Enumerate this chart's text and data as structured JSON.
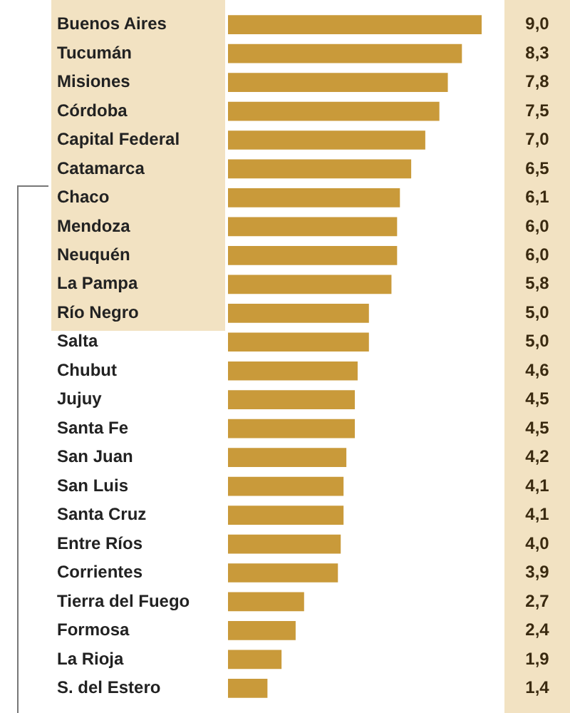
{
  "chart_data": {
    "type": "bar",
    "orientation": "horizontal",
    "color": "#c99a3a",
    "categories": [
      "Buenos Aires",
      "Tucumán",
      "Misiones",
      "Córdoba",
      "Capital Federal",
      "Catamarca",
      "Chaco",
      "Mendoza",
      "Neuquén",
      "La Pampa",
      "Río Negro",
      "Salta",
      "Chubut",
      "Jujuy",
      "Santa Fe",
      "San Juan",
      "San Luis",
      "Santa Cruz",
      "Entre Ríos",
      "Corrientes",
      "Tierra del Fuego",
      "Formosa",
      "La Rioja",
      "S. del Estero"
    ],
    "values": [
      9.0,
      8.3,
      7.8,
      7.5,
      7.0,
      6.5,
      6.1,
      6.0,
      6.0,
      5.8,
      5.0,
      5.0,
      4.6,
      4.5,
      4.5,
      4.2,
      4.1,
      4.1,
      4.0,
      3.9,
      2.7,
      2.4,
      1.9,
      1.4
    ],
    "value_labels": [
      "9,0",
      "8,3",
      "7,8",
      "7,5",
      "7,0",
      "6,5",
      "6,1",
      "6,0",
      "6,0",
      "5,8",
      "5,0",
      "5,0",
      "4,6",
      "4,5",
      "4,5",
      "4,2",
      "4,1",
      "4,1",
      "4,0",
      "3,9",
      "2,7",
      "2,4",
      "1,9",
      "1,4"
    ]
  }
}
